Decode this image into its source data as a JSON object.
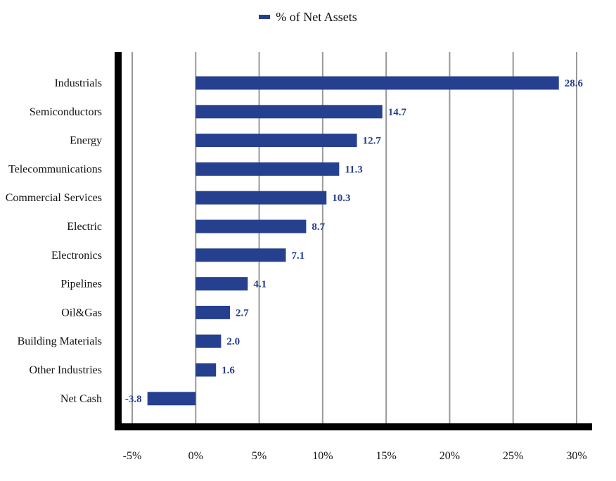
{
  "legend": {
    "label": "% of Net Assets"
  },
  "colors": {
    "bar": "#25408f",
    "grid": "#999999",
    "axis": "#000000",
    "text": "#111111"
  },
  "chart_data": {
    "type": "bar",
    "orientation": "horizontal",
    "categories": [
      "Industrials",
      "Semiconductors",
      "Energy",
      "Telecommunications",
      "Commercial Services",
      "Electric",
      "Electronics",
      "Pipelines",
      "Oil&Gas",
      "Building Materials",
      "Other Industries",
      "Net Cash"
    ],
    "series": [
      {
        "name": "% of Net Assets",
        "values": [
          28.6,
          14.7,
          12.7,
          11.3,
          10.3,
          8.7,
          7.1,
          4.1,
          2.7,
          2.0,
          1.6,
          -3.8
        ],
        "value_labels": [
          "28.6",
          "14.7",
          "12.7",
          "11.3",
          "10.3",
          "8.7",
          "7.1",
          "4.1",
          "2.7",
          "2.0",
          "1.6",
          "-3.8"
        ]
      }
    ],
    "xlim": [
      -5,
      30
    ],
    "xticks": [
      -5,
      0,
      5,
      10,
      15,
      20,
      25,
      30
    ],
    "xtick_labels": [
      "-5%",
      "0%",
      "5%",
      "10%",
      "15%",
      "20%",
      "25%",
      "30%"
    ],
    "title": "",
    "xlabel": "",
    "ylabel": "",
    "grid": true,
    "legend_position": "top-center",
    "data_labels": true
  }
}
